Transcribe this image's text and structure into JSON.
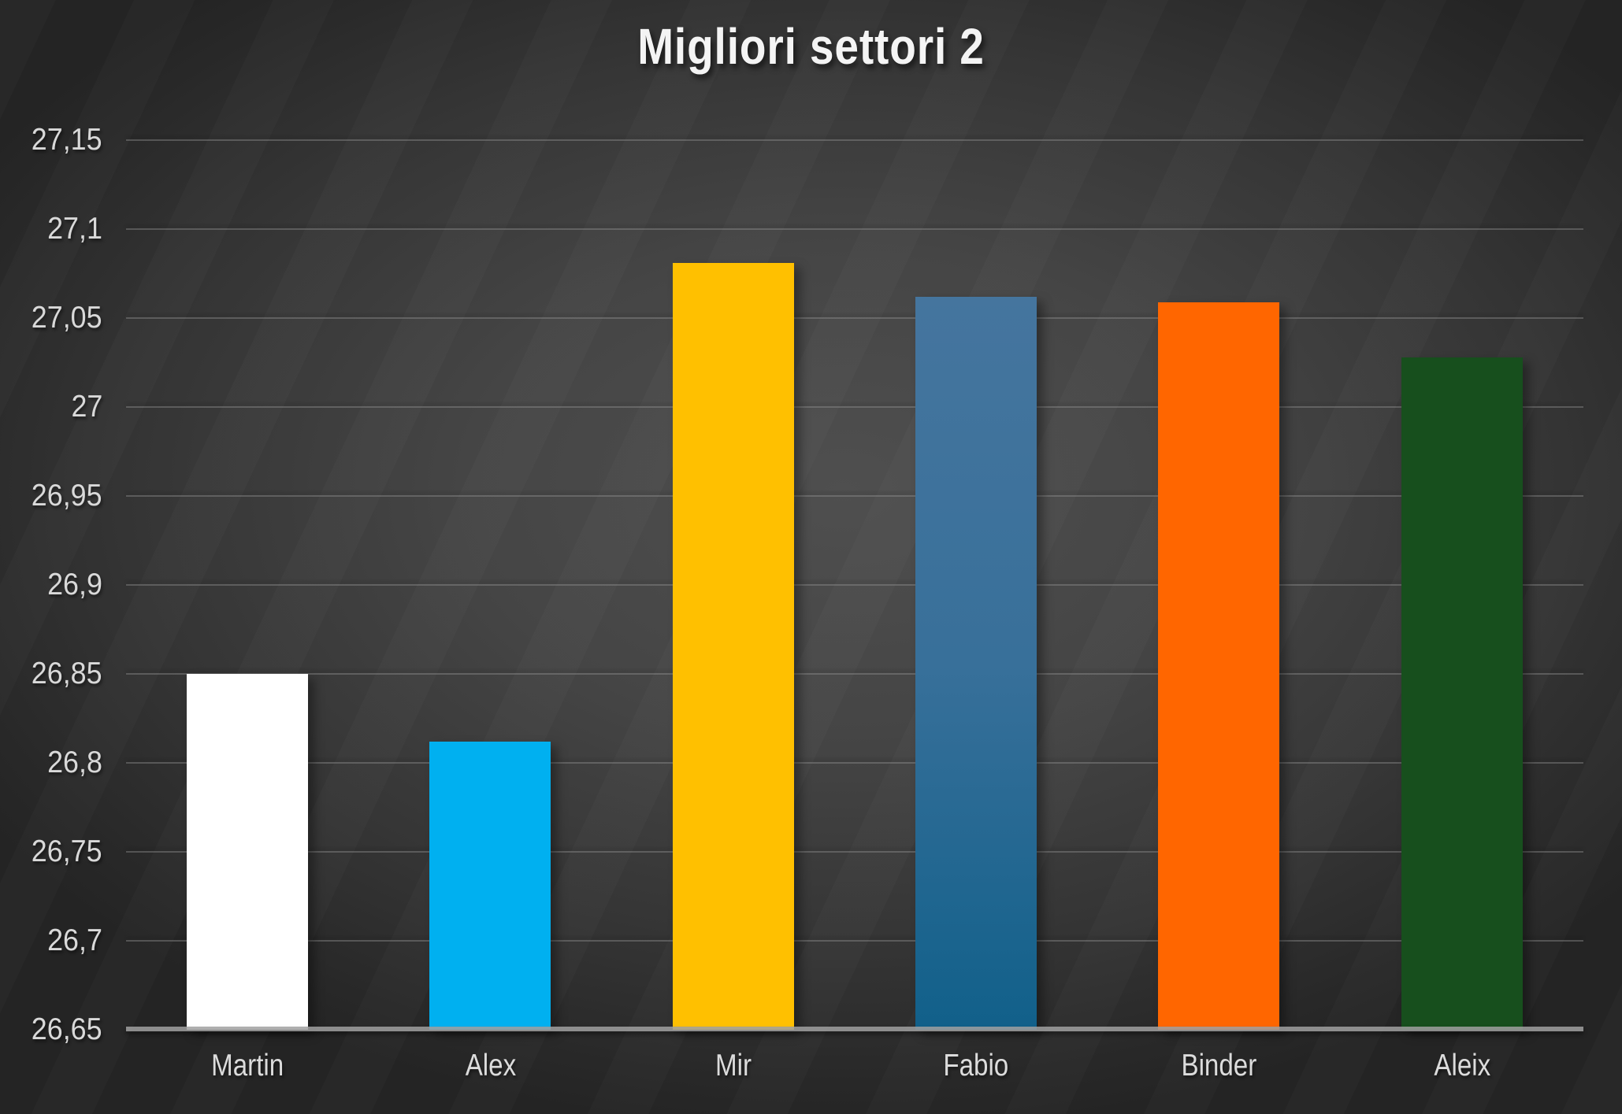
{
  "chart_data": {
    "type": "bar",
    "title": "Migliori settori 2",
    "categories": [
      "Martin",
      "Alex",
      "Mir",
      "Fabio",
      "Binder",
      "Aleix"
    ],
    "values": [
      26.85,
      26.812,
      27.081,
      27.062,
      27.059,
      27.028
    ],
    "bar_colors": [
      "#ffffff",
      "#00b0f0",
      "#ffc000",
      [
        "#45759e",
        "#38709a",
        "#11608a"
      ],
      "#ff6600",
      "#174f1d"
    ],
    "xlabel": "",
    "ylabel": "",
    "ylim": [
      26.65,
      27.15
    ],
    "ytick_step": 0.05,
    "ytick_labels": [
      "26,65",
      "26,7",
      "26,75",
      "26,8",
      "26,85",
      "26,9",
      "26,95",
      "27",
      "27,05",
      "27,1",
      "27,15"
    ],
    "decimal_separator": ",",
    "grid": true,
    "legend": false,
    "background": "dark-gray-gradient",
    "colors": {
      "title_text": "#f4f4f4",
      "tick_text": "#d9d9d9",
      "gridline": "#8f8f8f",
      "axis_line": "#a0a0a0"
    }
  }
}
